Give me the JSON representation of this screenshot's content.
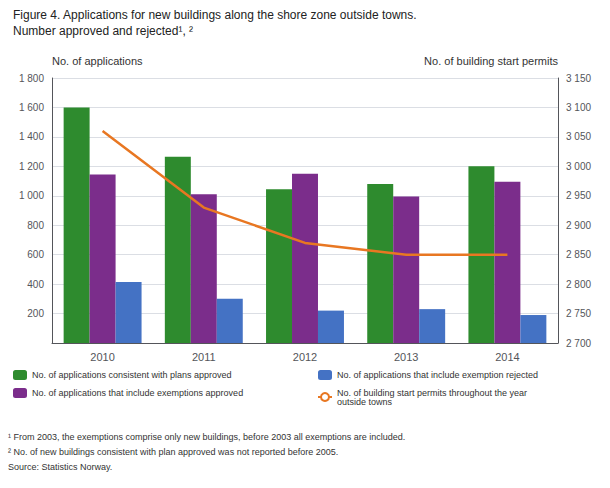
{
  "chart_data": {
    "type": "bar",
    "title": "Figure 4. Applications for new buildings along the shore zone outside towns.",
    "subtitle": "Number approved and rejected¹, ²",
    "ylabel": "No. of applications",
    "y2label": "No. of building start permits",
    "categories": [
      "2010",
      "2011",
      "2012",
      "2013",
      "2014"
    ],
    "series": [
      {
        "name": "No. of applications consistent with plans approved",
        "color": "#2e8b2e",
        "type": "bar",
        "values": [
          1600,
          1265,
          1045,
          1080,
          1200
        ]
      },
      {
        "name": "No. of applications that include exemptions approved",
        "color": "#7b2d8b",
        "type": "bar",
        "values": [
          1145,
          1010,
          1150,
          995,
          1095
        ]
      },
      {
        "name": "No. of applications that include exemption rejected",
        "color": "#4472c4",
        "type": "bar",
        "values": [
          415,
          300,
          220,
          230,
          190
        ]
      },
      {
        "name": "No. of building start permits throughout the year\noutside towns",
        "color": "#e87722",
        "type": "line",
        "axis": "y2",
        "values": [
          3060,
          2930,
          2870,
          2850,
          2850
        ]
      }
    ],
    "ylim": [
      0,
      1800
    ],
    "yticks": [
      {
        "value": 0,
        "label": null
      },
      200,
      400,
      600,
      800,
      {
        "value": 1000,
        "label": "1 000"
      },
      {
        "value": 1200,
        "label": "1 200"
      },
      {
        "value": 1400,
        "label": "1 400"
      },
      {
        "value": 1600,
        "label": "1 600"
      },
      {
        "value": 1800,
        "label": "1 800"
      }
    ],
    "y2lim": [
      2700,
      3150
    ],
    "y2ticks": [
      {
        "value": 2700,
        "label": "2 700"
      },
      {
        "value": 2750,
        "label": "2 750"
      },
      {
        "value": 2800,
        "label": "2 800"
      },
      {
        "value": 2850,
        "label": "2 850"
      },
      {
        "value": 2900,
        "label": "2 900"
      },
      {
        "value": 2950,
        "label": "2 950"
      },
      {
        "value": 3000,
        "label": "3 000"
      },
      {
        "value": 3050,
        "label": "3 050"
      },
      {
        "value": 3100,
        "label": "3 100"
      },
      {
        "value": 3150,
        "label": "3 150"
      }
    ],
    "grid": true,
    "legend": "bottom",
    "annotations": [
      "¹ From 2003, the exemptions comprise only new buildings, before 2003 all exemptions are included.",
      "² No. of new buildings consistent with plan approved was not reported before 2005.",
      "Source: Statistics Norway."
    ]
  }
}
